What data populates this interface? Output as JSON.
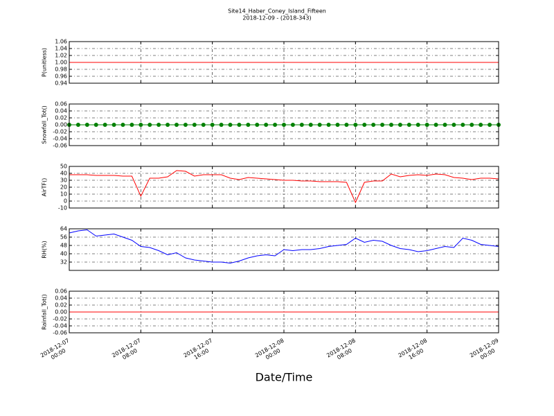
{
  "figure": {
    "title": "Site14_Haber_Coney_Island_Fifteen",
    "subtitle": "2018-12-09 - (2018-343)",
    "xlabel": "Date/Time",
    "xlim": [
      "2018-12-07 00:00",
      "2018-12-09 00:00"
    ],
    "xticks": [
      {
        "value": "2018-12-07 00:00",
        "label": [
          "2018-12-07",
          "00:00"
        ]
      },
      {
        "value": "2018-12-07 08:00",
        "label": [
          "2018-12-07",
          "08:00"
        ]
      },
      {
        "value": "2018-12-07 16:00",
        "label": [
          "2018-12-07",
          "16:00"
        ]
      },
      {
        "value": "2018-12-08 00:00",
        "label": [
          "2018-12-08",
          "00:00"
        ]
      },
      {
        "value": "2018-12-08 08:00",
        "label": [
          "2018-12-08",
          "08:00"
        ]
      },
      {
        "value": "2018-12-08 16:00",
        "label": [
          "2018-12-08",
          "16:00"
        ]
      },
      {
        "value": "2018-12-09 00:00",
        "label": [
          "2018-12-09",
          "00:00"
        ]
      }
    ],
    "x": [
      "2018-12-07 00:00",
      "2018-12-07 01:00",
      "2018-12-07 02:00",
      "2018-12-07 03:00",
      "2018-12-07 04:00",
      "2018-12-07 05:00",
      "2018-12-07 06:00",
      "2018-12-07 07:00",
      "2018-12-07 08:00",
      "2018-12-07 09:00",
      "2018-12-07 10:00",
      "2018-12-07 11:00",
      "2018-12-07 12:00",
      "2018-12-07 13:00",
      "2018-12-07 14:00",
      "2018-12-07 15:00",
      "2018-12-07 16:00",
      "2018-12-07 17:00",
      "2018-12-07 18:00",
      "2018-12-07 19:00",
      "2018-12-07 20:00",
      "2018-12-07 21:00",
      "2018-12-07 22:00",
      "2018-12-07 23:00",
      "2018-12-08 00:00",
      "2018-12-08 01:00",
      "2018-12-08 02:00",
      "2018-12-08 03:00",
      "2018-12-08 04:00",
      "2018-12-08 05:00",
      "2018-12-08 06:00",
      "2018-12-08 07:00",
      "2018-12-08 08:00",
      "2018-12-08 09:00",
      "2018-12-08 10:00",
      "2018-12-08 11:00",
      "2018-12-08 12:00",
      "2018-12-08 13:00",
      "2018-12-08 14:00",
      "2018-12-08 15:00",
      "2018-12-08 16:00",
      "2018-12-08 17:00",
      "2018-12-08 18:00",
      "2018-12-08 19:00",
      "2018-12-08 20:00",
      "2018-12-08 21:00",
      "2018-12-08 22:00",
      "2018-12-08 23:00",
      "2018-12-09 00:00"
    ]
  },
  "chart_data": [
    {
      "type": "line",
      "ylabel": "P(unitless)",
      "ylim": [
        0.94,
        1.06
      ],
      "grid": true,
      "yticks": [
        0.94,
        0.96,
        0.98,
        {
          "value": 1,
          "label": "1.00"
        },
        1.02,
        1.04,
        1.06
      ],
      "series": [
        {
          "color": "#ff0000",
          "values": [
            1,
            1,
            1,
            1,
            1,
            1,
            1,
            1,
            1,
            1,
            1,
            1,
            1,
            1,
            1,
            1,
            1,
            1,
            1,
            1,
            1,
            1,
            1,
            1,
            1,
            1,
            1,
            1,
            1,
            1,
            1,
            1,
            1,
            1,
            1,
            1,
            1,
            1,
            1,
            1,
            1,
            1,
            1,
            1,
            1,
            1,
            1,
            1,
            1
          ]
        }
      ]
    },
    {
      "type": "line",
      "ylabel": "Snowfall_Tot()",
      "ylim": [
        -0.06,
        0.06
      ],
      "grid": true,
      "marker": "o",
      "yticks": [
        -0.06,
        -0.04,
        -0.02,
        {
          "value": 0,
          "label": "0.00"
        },
        0.02,
        0.04,
        0.06
      ],
      "series": [
        {
          "color": "#008000",
          "values": [
            0,
            0,
            0,
            0,
            0,
            0,
            0,
            0,
            0,
            0,
            0,
            0,
            0,
            0,
            0,
            0,
            0,
            0,
            0,
            0,
            0,
            0,
            0,
            0,
            0,
            0,
            0,
            0,
            0,
            0,
            0,
            0,
            0,
            0,
            0,
            0,
            0,
            0,
            0,
            0,
            0,
            0,
            0,
            0,
            0,
            0,
            0,
            0,
            0
          ]
        }
      ]
    },
    {
      "type": "line",
      "ylabel": "AirTF()",
      "ylim": [
        -10,
        50
      ],
      "grid": true,
      "yticks": [
        -10,
        0,
        10,
        20,
        30,
        40,
        50
      ],
      "series": [
        {
          "color": "#ff0000",
          "values": [
            38,
            38,
            38,
            37,
            37,
            37,
            36,
            36,
            7,
            33,
            33,
            35,
            44,
            43,
            36,
            38,
            38,
            38,
            33,
            31,
            34,
            33,
            32,
            31,
            30,
            30,
            29,
            29,
            28,
            28,
            28,
            27,
            -2,
            27,
            29,
            29,
            39,
            35,
            37,
            38,
            37,
            39,
            38,
            34,
            33,
            31,
            33,
            33,
            32
          ]
        }
      ]
    },
    {
      "type": "line",
      "ylabel": "RH(%)",
      "ylim": [
        24,
        64
      ],
      "grid": true,
      "yticks": [
        32,
        40,
        48,
        56,
        64
      ],
      "series": [
        {
          "color": "#0000ff",
          "values": [
            60,
            62,
            63,
            57,
            58,
            59,
            56,
            53,
            47,
            46,
            43,
            39,
            41,
            36,
            34,
            33,
            32,
            32,
            31,
            33,
            36,
            38,
            39,
            38,
            44,
            43,
            44,
            44,
            45,
            47,
            48,
            49,
            55,
            51,
            53,
            52,
            48,
            45,
            44,
            42,
            43,
            45,
            47,
            46,
            55,
            53,
            49,
            48,
            47
          ]
        }
      ]
    },
    {
      "type": "line",
      "ylabel": "Rainfall_Tot()",
      "ylim": [
        -0.06,
        0.06
      ],
      "grid": true,
      "yticks": [
        -0.06,
        -0.04,
        -0.02,
        {
          "value": 0,
          "label": "0.00"
        },
        0.02,
        0.04,
        0.06
      ],
      "series": [
        {
          "color": "#ff0000",
          "values": [
            0,
            0,
            0,
            0,
            0,
            0,
            0,
            0,
            0,
            0,
            0,
            0,
            0,
            0,
            0,
            0,
            0,
            0,
            0,
            0,
            0,
            0,
            0,
            0,
            0,
            0,
            0,
            0,
            0,
            0,
            0,
            0,
            0,
            0,
            0,
            0,
            0,
            0,
            0,
            0,
            0,
            0,
            0,
            0,
            0,
            0,
            0,
            0,
            0
          ]
        }
      ]
    }
  ]
}
